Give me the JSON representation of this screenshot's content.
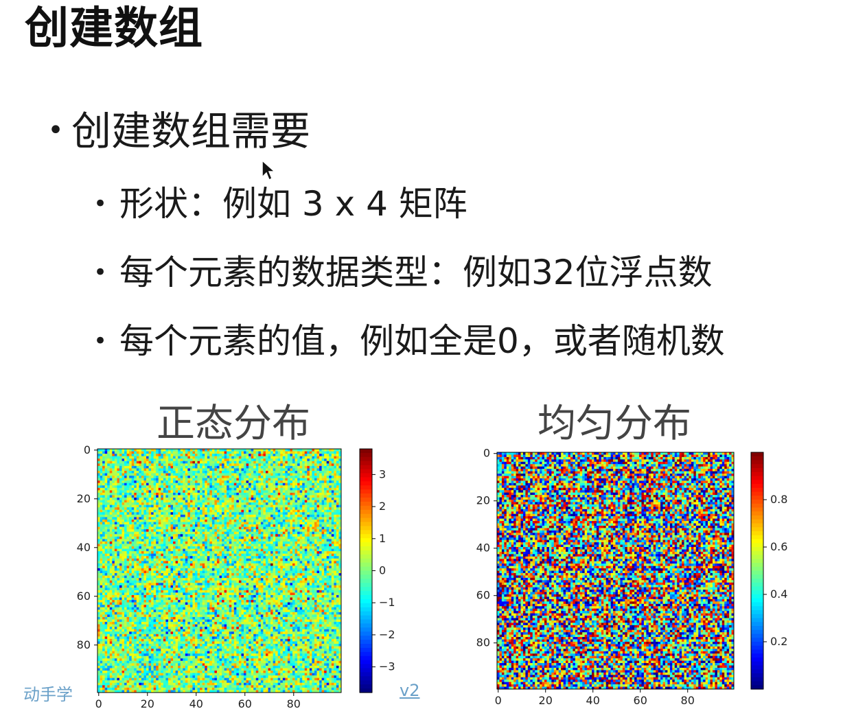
{
  "slide": {
    "title": "创建数组",
    "bullets": [
      {
        "level": 1,
        "text": "创建数组需要"
      },
      {
        "level": 2,
        "text": "形状：例如 3 x 4 矩阵"
      },
      {
        "level": 2,
        "text": "每个元素的数据类型：例如32位浮点数"
      },
      {
        "level": 2,
        "text": "每个元素的值，例如全是0，或者随机数"
      }
    ],
    "bullet_glyph": "•"
  },
  "footer": {
    "left_text": "动手学",
    "right_text": "v2",
    "color": "#6aa0c8"
  },
  "chart_data": [
    {
      "type": "heatmap",
      "title": "正态分布",
      "rows": 100,
      "cols": 100,
      "distribution": "normal",
      "value_range": [
        -3.8,
        3.8
      ],
      "colormap": "jet",
      "x_ticks": [
        "0",
        "20",
        "40",
        "60",
        "80"
      ],
      "y_ticks": [
        "0",
        "20",
        "40",
        "60",
        "80"
      ],
      "colorbar_ticks": [
        "3",
        "2",
        "1",
        "0",
        "−1",
        "−2",
        "−3"
      ],
      "colorbar_values": [
        3,
        2,
        1,
        0,
        -1,
        -2,
        -3
      ]
    },
    {
      "type": "heatmap",
      "title": "均匀分布",
      "rows": 100,
      "cols": 100,
      "distribution": "uniform",
      "value_range": [
        0,
        1
      ],
      "colormap": "jet",
      "x_ticks": [
        "0",
        "20",
        "40",
        "60",
        "80"
      ],
      "y_ticks": [
        "0",
        "20",
        "40",
        "60",
        "80"
      ],
      "colorbar_ticks": [
        "0.8",
        "0.6",
        "0.4",
        "0.2"
      ],
      "colorbar_values": [
        0.8,
        0.6,
        0.4,
        0.2
      ]
    }
  ]
}
